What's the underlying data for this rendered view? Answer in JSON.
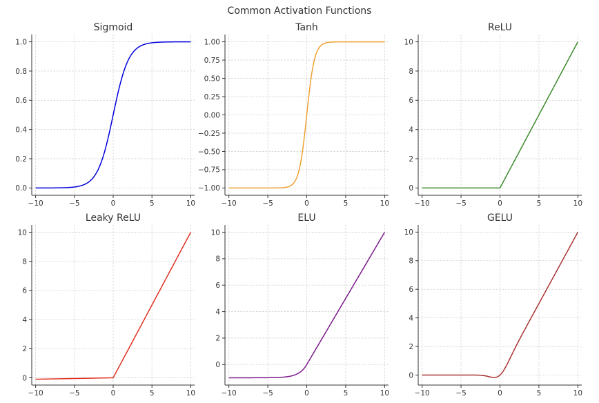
{
  "figure_title": "Common Activation Functions",
  "chart_data": [
    {
      "type": "line",
      "title": "Sigmoid",
      "function": "sigmoid",
      "color": "#0000dd",
      "xlim": [
        -10.5,
        10.5
      ],
      "ylim": [
        -0.05,
        1.05
      ],
      "xticks": [
        -10,
        -5,
        0,
        5,
        10
      ],
      "xtick_labels": [
        "−10",
        "−5",
        "0",
        "5",
        "10"
      ],
      "yticks": [
        0.0,
        0.2,
        0.4,
        0.6,
        0.8,
        1.0
      ],
      "ytick_labels": [
        "0.0",
        "0.2",
        "0.4",
        "0.6",
        "0.8",
        "1.0"
      ],
      "x": [
        -10,
        -8,
        -6,
        -5,
        -4,
        -3,
        -2,
        -1,
        0,
        1,
        2,
        3,
        4,
        5,
        6,
        8,
        10
      ],
      "y": [
        0.0,
        0.0003,
        0.0025,
        0.0067,
        0.018,
        0.047,
        0.119,
        0.269,
        0.5,
        0.731,
        0.881,
        0.953,
        0.982,
        0.993,
        0.998,
        0.9997,
        1.0
      ],
      "grid": true
    },
    {
      "type": "line",
      "title": "Tanh",
      "function": "tanh",
      "color": "#f0a030",
      "xlim": [
        -10.5,
        10.5
      ],
      "ylim": [
        -1.1,
        1.1
      ],
      "xticks": [
        -10,
        -5,
        0,
        5,
        10
      ],
      "xtick_labels": [
        "−10",
        "−5",
        "0",
        "5",
        "10"
      ],
      "yticks": [
        -1.0,
        -0.75,
        -0.5,
        -0.25,
        0.0,
        0.25,
        0.5,
        0.75,
        1.0
      ],
      "ytick_labels": [
        "−1.00",
        "−0.75",
        "−0.50",
        "−0.25",
        "0.00",
        "0.25",
        "0.50",
        "0.75",
        "1.00"
      ],
      "x": [
        -10,
        -5,
        -3,
        -2,
        -1.5,
        -1,
        -0.5,
        0,
        0.5,
        1,
        1.5,
        2,
        3,
        5,
        10
      ],
      "y": [
        -1.0,
        -1.0,
        -0.995,
        -0.964,
        -0.905,
        -0.762,
        -0.462,
        0.0,
        0.462,
        0.762,
        0.905,
        0.964,
        0.995,
        1.0,
        1.0
      ],
      "grid": true
    },
    {
      "type": "line",
      "title": "ReLU",
      "function": "relu",
      "color": "#3a8a2a",
      "xlim": [
        -10.5,
        10.5
      ],
      "ylim": [
        -0.5,
        10.5
      ],
      "xticks": [
        -10,
        -5,
        0,
        5,
        10
      ],
      "xtick_labels": [
        "−10",
        "−5",
        "0",
        "5",
        "10"
      ],
      "yticks": [
        0,
        2,
        4,
        6,
        8,
        10
      ],
      "ytick_labels": [
        "0",
        "2",
        "4",
        "6",
        "8",
        "10"
      ],
      "x": [
        -10,
        0,
        10
      ],
      "y": [
        0,
        0,
        10
      ],
      "grid": true
    },
    {
      "type": "line",
      "title": "Leaky ReLU",
      "function": "leaky_relu",
      "color": "#e03020",
      "xlim": [
        -10.5,
        10.5
      ],
      "ylim": [
        -0.5,
        10.5
      ],
      "xticks": [
        -10,
        -5,
        0,
        5,
        10
      ],
      "xtick_labels": [
        "−10",
        "−5",
        "0",
        "5",
        "10"
      ],
      "yticks": [
        0,
        2,
        4,
        6,
        8,
        10
      ],
      "ytick_labels": [
        "0",
        "2",
        "4",
        "6",
        "8",
        "10"
      ],
      "x": [
        -10,
        0,
        10
      ],
      "y": [
        -0.1,
        0,
        10
      ],
      "grid": true
    },
    {
      "type": "line",
      "title": "ELU",
      "function": "elu",
      "color": "#7a1a8a",
      "xlim": [
        -10.5,
        10.5
      ],
      "ylim": [
        -1.55,
        10.55
      ],
      "xticks": [
        -10,
        -5,
        0,
        5,
        10
      ],
      "xtick_labels": [
        "−10",
        "−5",
        "0",
        "5",
        "10"
      ],
      "yticks": [
        0,
        2,
        4,
        6,
        8,
        10
      ],
      "ytick_labels": [
        "0",
        "2",
        "4",
        "6",
        "8",
        "10"
      ],
      "x": [
        -10,
        -5,
        -4,
        -3,
        -2,
        -1,
        -0.5,
        0,
        10
      ],
      "y": [
        -1.0,
        -0.993,
        -0.982,
        -0.95,
        -0.865,
        -0.632,
        -0.393,
        0,
        10
      ],
      "grid": true
    },
    {
      "type": "line",
      "title": "GELU",
      "function": "gelu",
      "color": "#a83232",
      "xlim": [
        -10.5,
        10.5
      ],
      "ylim": [
        -0.7,
        10.5
      ],
      "xticks": [
        -10,
        -5,
        0,
        5,
        10
      ],
      "xtick_labels": [
        "−10",
        "−5",
        "0",
        "5",
        "10"
      ],
      "yticks": [
        0,
        2,
        4,
        6,
        8,
        10
      ],
      "ytick_labels": [
        "0",
        "2",
        "4",
        "6",
        "8",
        "10"
      ],
      "x": [
        -10,
        -4,
        -3,
        -2,
        -1.5,
        -1,
        -0.75,
        -0.5,
        -0.25,
        0,
        0.5,
        1,
        1.5,
        2,
        3,
        4,
        10
      ],
      "y": [
        0,
        -0.0001,
        -0.004,
        -0.045,
        -0.1,
        -0.159,
        -0.17,
        -0.154,
        -0.1,
        0,
        0.346,
        0.841,
        1.4,
        1.955,
        2.996,
        4.0,
        10
      ],
      "grid": true
    }
  ]
}
